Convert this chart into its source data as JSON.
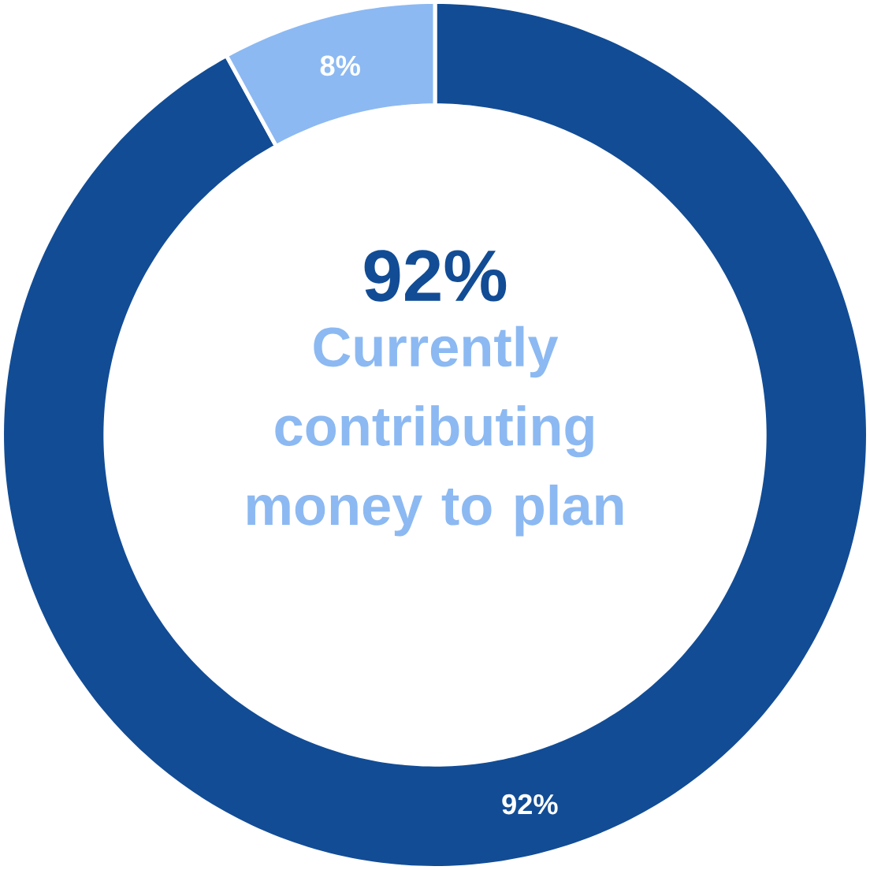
{
  "chart_data": {
    "type": "donut",
    "categories": [
      null,
      null
    ],
    "values": [
      92,
      8
    ],
    "colors": [
      "#124c95",
      "#8cb9f2"
    ],
    "value_labels": [
      "92%",
      "8%"
    ],
    "annotations": [
      "92%",
      "Currently contributing money to plan"
    ]
  }
}
